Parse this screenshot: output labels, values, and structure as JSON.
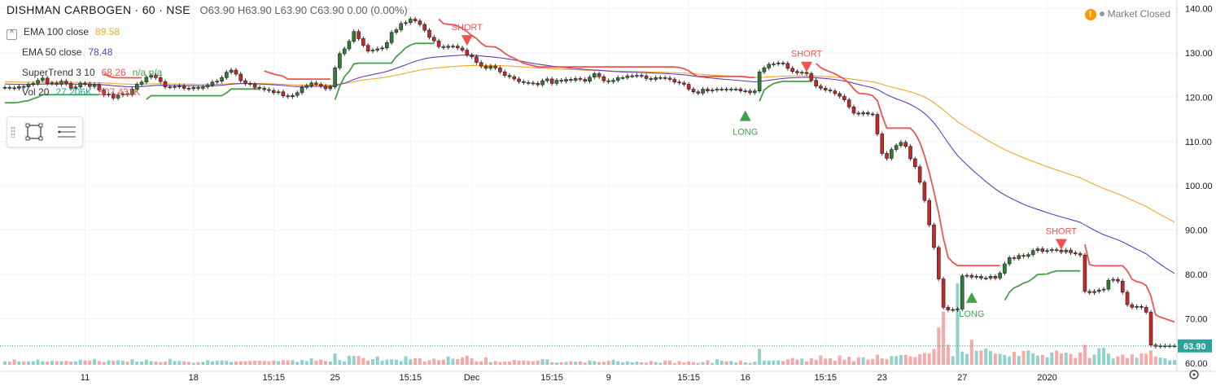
{
  "header": {
    "symbol": "DISHMAN CARBOGEN · 60 · NSE",
    "ohlc": {
      "o": "O63.90",
      "h": "H63.90",
      "l": "L63.90",
      "c": "C63.90",
      "chg": "0.00 (0.00%)"
    }
  },
  "indicators": [
    {
      "label": "EMA 100 close",
      "value": "89.58",
      "color": "#f4a62a",
      "toggle": "^"
    },
    {
      "label": "EMA 50 close",
      "value": "78.48",
      "color": "#673ab7",
      "toggle": ""
    },
    {
      "label": "SuperTrend 3 10",
      "value": "68.26",
      "extra": "n/a  n/a",
      "color": "#ef5350",
      "toggle": ""
    },
    {
      "label": "Vol 20",
      "value": "27.206K",
      "extra": "507.431K",
      "color": "#26a69a",
      "toggle": ""
    }
  ],
  "market_status": "Market Closed",
  "icons": {
    "warning": "warning-icon",
    "settings": "gear-icon",
    "rectangle": "rectangle-tool-icon",
    "menu": "menu-lines-icon"
  },
  "colors": {
    "up": "#26a69a",
    "down": "#ef5350",
    "candle_up": "#2e7d32",
    "candle_down": "#c62828",
    "grid": "#f0f3fa",
    "ema100": "#f4a62a",
    "ema50": "#673ab7",
    "st_up": "#43a047",
    "st_down": "#ef5350"
  },
  "chart_data": {
    "type": "line",
    "title": "DISHMAN CARBOGEN · 60 · NSE",
    "xlabel": "",
    "ylabel": "",
    "ylim": [
      59.5,
      141.5
    ],
    "grid": true,
    "y_ticks": [
      60,
      70,
      80,
      90,
      100,
      110,
      120,
      130,
      140
    ],
    "x_tick_labels": [
      "11",
      "18",
      "15:15",
      "25",
      "15:15",
      "Dec",
      "15:15",
      "9",
      "15:15",
      "16",
      "15:15",
      "23",
      "27",
      "2020"
    ],
    "x_tick_index": [
      17,
      40,
      57,
      70,
      86,
      99,
      116,
      128,
      145,
      157,
      174,
      186,
      203,
      221
    ],
    "last_price": "63.90",
    "close": [
      122.2,
      122.1,
      122.0,
      122.4,
      122.3,
      122.9,
      123.1,
      123.8,
      124.3,
      123.1,
      123.2,
      122.9,
      123.6,
      123.1,
      122.0,
      122.3,
      123.1,
      123.0,
      122.4,
      122.8,
      121.6,
      120.5,
      120.7,
      119.8,
      120.5,
      120.8,
      120.6,
      121.8,
      122.9,
      123.4,
      124.5,
      124.9,
      124.4,
      123.5,
      122.3,
      122.3,
      122.4,
      122.5,
      122.0,
      121.9,
      122.2,
      122.0,
      122.3,
      122.7,
      123.4,
      123.6,
      124.4,
      125.6,
      126.1,
      125.2,
      123.7,
      123.1,
      122.9,
      122.2,
      122.0,
      121.7,
      121.5,
      121.0,
      121.2,
      120.3,
      120.1,
      120.4,
      121.0,
      122.2,
      122.6,
      123.2,
      122.9,
      122.5,
      121.9,
      122.3,
      126.6,
      129.8,
      130.9,
      132.6,
      134.8,
      133.2,
      131.7,
      130.4,
      130.6,
      130.9,
      131.1,
      132.3,
      134.6,
      135.2,
      136.6,
      136.8,
      137.6,
      137.2,
      136.4,
      135.1,
      133.5,
      132.7,
      131.4,
      131.2,
      131.5,
      131.5,
      131.1,
      130.6,
      129.5,
      129.1,
      127.8,
      127.0,
      126.5,
      127.0,
      126.6,
      125.7,
      124.9,
      124.6,
      124.1,
      123.5,
      123.3,
      123.2,
      123.1,
      122.8,
      123.7,
      124.1,
      123.1,
      123.8,
      123.6,
      124.0,
      123.8,
      124.2,
      124.0,
      123.6,
      124.5,
      125.3,
      124.6,
      123.7,
      123.5,
      123.8,
      124.4,
      124.4,
      124.8,
      124.8,
      124.9,
      124.8,
      124.2,
      124.0,
      124.4,
      124.4,
      124.3,
      124.0,
      123.4,
      123.2,
      122.9,
      121.8,
      121.2,
      120.9,
      121.8,
      121.4,
      121.6,
      121.8,
      121.8,
      121.7,
      121.8,
      121.8,
      121.4,
      121.4,
      121.0,
      121.4,
      125.7,
      126.6,
      127.4,
      127.5,
      127.7,
      127.6,
      126.5,
      125.8,
      125.5,
      125.6,
      125.3,
      123.8,
      122.5,
      122.0,
      121.6,
      121.4,
      120.8,
      120.2,
      119.4,
      117.8,
      116.4,
      116.2,
      116.5,
      116.2,
      116.1,
      111.7,
      107.3,
      106.2,
      108.2,
      109.1,
      109.8,
      108.9,
      106.1,
      104.3,
      100.8,
      96.7,
      91.2,
      86.1,
      79.0,
      72.6,
      72.0,
      72.1,
      72.2,
      79.7,
      79.8,
      79.4,
      79.6,
      79.2,
      79.2,
      79.6,
      79.2,
      80.3,
      82.4,
      83.8,
      83.6,
      84.3,
      84.1,
      84.5,
      85.4,
      85.8,
      85.2,
      85.4,
      85.6,
      85.5,
      85.1,
      85.5,
      84.9,
      84.7,
      84.4,
      76.2,
      75.9,
      76.2,
      76.5,
      76.7,
      78.7,
      78.9,
      78.5,
      76.0,
      73.2,
      72.6,
      72.8,
      72.6,
      71.5,
      64.1,
      63.8,
      63.9,
      63.9,
      63.9,
      63.9
    ],
    "volume_k": [
      21,
      19,
      32,
      21,
      22,
      21,
      22,
      31,
      22,
      20,
      24,
      22,
      22,
      24,
      19,
      21,
      31,
      26,
      26,
      36,
      23,
      17,
      27,
      24,
      28,
      24,
      19,
      34,
      20,
      20,
      31,
      23,
      20,
      16,
      20,
      36,
      23,
      24,
      21,
      17,
      12,
      17,
      18,
      27,
      21,
      25,
      26,
      24,
      17,
      21,
      22,
      22,
      23,
      25,
      24,
      23,
      21,
      26,
      22,
      28,
      27,
      28,
      18,
      29,
      23,
      38,
      25,
      31,
      23,
      20,
      68,
      29,
      22,
      54,
      53,
      54,
      41,
      25,
      34,
      50,
      25,
      32,
      33,
      31,
      22,
      51,
      34,
      40,
      39,
      20,
      27,
      37,
      28,
      31,
      49,
      37,
      34,
      45,
      55,
      39,
      21,
      22,
      44,
      17,
      23,
      17,
      20,
      21,
      29,
      25,
      26,
      23,
      21,
      26,
      34,
      32,
      16,
      14,
      15,
      18,
      22,
      19,
      21,
      13,
      26,
      22,
      17,
      18,
      24,
      30,
      22,
      15,
      21,
      15,
      19,
      15,
      13,
      23,
      17,
      12,
      25,
      25,
      11,
      23,
      14,
      21,
      16,
      12,
      17,
      28,
      11,
      34,
      25,
      22,
      23,
      14,
      25,
      15,
      12,
      19,
      97,
      25,
      25,
      26,
      27,
      23,
      33,
      41,
      32,
      38,
      20,
      39,
      30,
      56,
      37,
      39,
      25,
      56,
      31,
      48,
      22,
      46,
      44,
      32,
      35,
      61,
      38,
      35,
      52,
      52,
      59,
      60,
      51,
      46,
      64,
      72,
      68,
      95,
      224,
      320,
      121,
      52,
      489,
      79,
      66,
      150,
      84,
      86,
      98,
      82,
      67,
      66,
      60,
      51,
      78,
      53,
      83,
      86,
      70,
      54,
      60,
      45,
      75,
      86,
      68,
      73,
      65,
      41,
      74,
      120,
      42,
      62,
      100,
      102,
      68,
      38,
      51,
      62,
      41,
      63,
      43,
      69,
      67,
      86,
      51,
      44,
      39,
      27,
      29,
      27
    ],
    "series": [
      {
        "name": "EMA 100 close",
        "values": [
          null,
          null,
          null,
          null,
          null,
          null,
          null,
          null,
          null,
          null,
          null,
          null,
          null,
          null,
          null,
          null,
          null,
          null,
          null,
          null,
          null,
          null,
          null,
          null,
          null,
          null,
          null,
          null,
          null,
          null,
          null,
          null,
          null,
          null,
          null,
          null,
          null,
          null,
          null,
          null,
          null,
          null,
          null,
          null,
          null,
          null,
          null,
          null,
          null,
          null,
          null,
          null,
          null,
          null,
          null,
          null,
          null,
          null,
          null,
          null,
          null,
          null,
          null,
          null,
          null,
          null,
          null,
          null,
          null,
          null,
          null,
          null,
          null,
          null,
          null,
          null,
          null,
          null,
          null,
          null,
          null,
          null,
          null,
          null,
          null,
          null,
          null,
          null,
          null,
          null,
          null,
          null,
          null,
          null,
          null,
          null,
          null,
          null,
          null,
          null,
          null,
          null,
          null,
          null,
          null,
          null,
          null,
          null,
          null,
          null,
          null,
          null,
          null,
          null,
          null,
          null,
          null,
          null,
          null,
          null,
          null,
          null,
          null,
          null,
          null,
          null,
          null,
          null,
          null,
          null,
          null,
          null,
          null,
          null,
          null,
          null,
          null,
          null,
          null,
          null,
          null,
          null,
          null,
          null,
          null,
          null,
          null,
          null,
          null,
          null,
          null,
          null,
          null,
          null,
          null,
          null,
          null,
          null,
          null,
          null,
          null,
          null,
          null,
          null,
          null,
          null,
          null,
          null,
          null,
          null,
          null,
          null,
          null,
          null,
          null,
          null,
          null,
          null,
          null,
          null,
          null,
          null,
          null,
          null,
          null,
          null,
          null,
          null,
          null,
          null,
          null,
          null,
          null,
          null,
          null,
          null,
          null,
          null,
          null,
          null,
          null,
          null,
          null,
          null,
          null,
          null,
          null,
          null,
          null,
          null,
          null,
          null,
          null,
          null,
          null,
          null,
          null,
          null,
          null,
          null,
          null,
          null,
          null,
          null,
          null,
          null,
          null,
          null,
          null,
          null,
          null,
          null,
          null,
          null,
          null,
          null,
          null,
          null,
          null,
          null,
          null,
          null,
          null,
          null,
          null,
          null,
          null,
          null,
          null,
          null,
          null,
          null,
          null,
          null,
          null,
          null,
          null,
          null
        ]
      },
      {
        "name": "EMA 50 close",
        "values": []
      },
      {
        "name": "SuperTrend 3 10",
        "values": []
      }
    ],
    "signals": [
      {
        "type": "SHORT",
        "index": 98,
        "price": 134.0
      },
      {
        "type": "LONG",
        "index": 157,
        "price": 117.0
      },
      {
        "type": "SHORT",
        "index": 170,
        "price": 128.0
      },
      {
        "type": "LONG",
        "index": 205,
        "price": 76.0
      },
      {
        "type": "SHORT",
        "index": 224,
        "price": 88.0
      }
    ]
  }
}
